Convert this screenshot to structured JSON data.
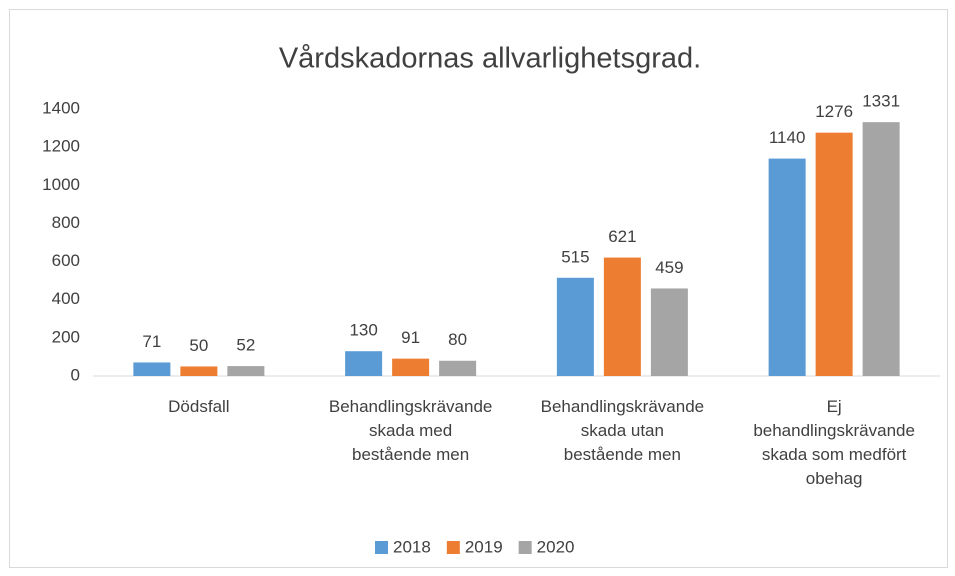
{
  "chart_data": {
    "type": "bar",
    "title": "Vårdskadornas allvarlighetsgrad.",
    "categories": [
      "Dödsfall",
      "Behandlingskrävande skada med bestående men",
      "Behandlingskrävande skada utan bestående men",
      "Ej behandlingskrävande skada som medfört obehag"
    ],
    "series": [
      {
        "name": "2018",
        "color": "#5b9bd5",
        "values": [
          71,
          130,
          515,
          1140
        ]
      },
      {
        "name": "2019",
        "color": "#ed7d31",
        "values": [
          50,
          91,
          621,
          1276
        ]
      },
      {
        "name": "2020",
        "color": "#a5a5a5",
        "values": [
          52,
          80,
          459,
          1331
        ]
      }
    ],
    "ylim": [
      0,
      1400
    ],
    "yticks": [
      0,
      200,
      400,
      600,
      800,
      1000,
      1200,
      1400
    ],
    "grid": false,
    "legend": "bottom"
  }
}
